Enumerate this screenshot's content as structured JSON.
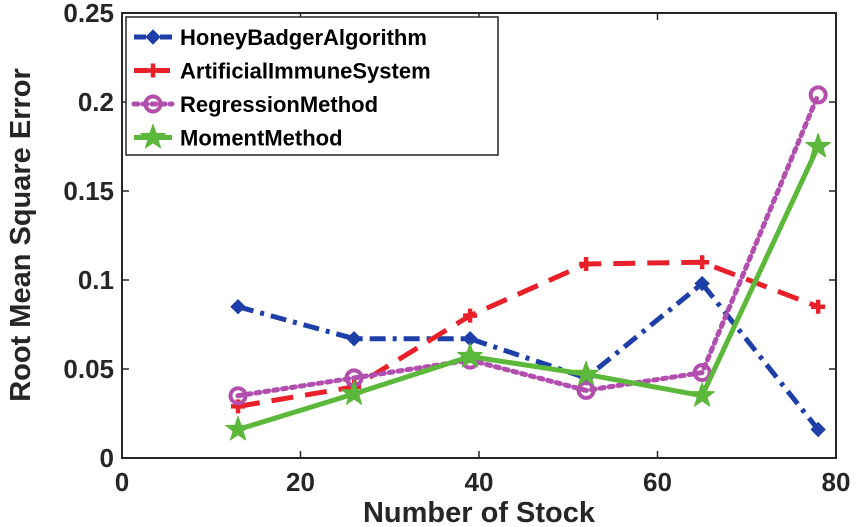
{
  "chart_data": {
    "type": "line",
    "title": "",
    "xlabel": "Number of Stock",
    "ylabel": "Root Mean Square Error",
    "xlim": [
      0,
      80
    ],
    "ylim": [
      0,
      0.25
    ],
    "xticks": [
      0,
      20,
      40,
      60,
      80
    ],
    "xtick_labels": [
      "0",
      "20",
      "40",
      "60",
      "80"
    ],
    "yticks": [
      0,
      0.05,
      0.1,
      0.15,
      0.2,
      0.25
    ],
    "ytick_labels": [
      "0",
      "0.05",
      "0.1",
      "0.15",
      "0.2",
      "0.25"
    ],
    "legend_position": "top-left",
    "x": [
      13,
      26,
      39,
      52,
      65,
      78
    ],
    "series": [
      {
        "name": "HoneyBadgerAlgorithm",
        "values": [
          0.085,
          0.067,
          0.067,
          0.045,
          0.098,
          0.016
        ],
        "color": "#1f3fa8",
        "dash": "dashdot",
        "marker": "diamond"
      },
      {
        "name": "ArtificialImmuneSystem",
        "values": [
          0.029,
          0.04,
          0.08,
          0.109,
          0.11,
          0.085
        ],
        "color": "#e8202a",
        "dash": "dashed",
        "marker": "plus"
      },
      {
        "name": "RegressionMethod",
        "values": [
          0.035,
          0.045,
          0.055,
          0.038,
          0.048,
          0.204
        ],
        "color": "#b24fae",
        "dash": "dotted",
        "marker": "circle"
      },
      {
        "name": "MomentMethod",
        "values": [
          0.016,
          0.036,
          0.057,
          0.047,
          0.035,
          0.175
        ],
        "color": "#5cb83a",
        "dash": "solid",
        "marker": "star"
      }
    ]
  }
}
